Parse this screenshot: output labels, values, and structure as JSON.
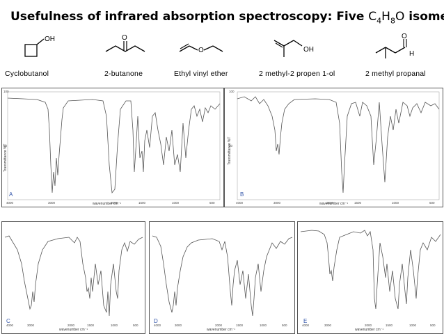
{
  "title": {
    "main": "Usefulness of infrared absorption spectroscopy: Five ",
    "formula_parts": [
      {
        "t": "C",
        "sub": false
      },
      {
        "t": "4",
        "sub": true
      },
      {
        "t": "H",
        "sub": false
      },
      {
        "t": "8",
        "sub": true
      },
      {
        "t": "O",
        "sub": false
      }
    ],
    "tail": " isomers"
  },
  "molecules": [
    {
      "name": "Cyclobutanol",
      "atom": "OH"
    },
    {
      "name": "2-butanone",
      "atom": "O"
    },
    {
      "name": "Ethyl vinyl ether",
      "atom": "O"
    },
    {
      "name": "2 methyl-2 propen 1-ol",
      "atom": "OH"
    },
    {
      "name": "2 methyl propanal",
      "atom": "O",
      "atom2": "H"
    }
  ],
  "spectra": [
    {
      "label": "A",
      "xlabel": "wavenumber cm⁻¹",
      "ylabel": "Transmittance %T",
      "ticks": [
        "4000",
        "3000",
        "2000",
        "1500",
        "1000",
        "500"
      ],
      "y_ticks": [
        "100",
        "50"
      ]
    },
    {
      "label": "B",
      "xlabel": "wavenumber cm⁻¹",
      "ylabel": "Transmittance %T",
      "ticks": [
        "4000",
        "3000",
        "2000",
        "1500",
        "1000",
        "500"
      ],
      "y_ticks": [
        "100",
        "50"
      ]
    },
    {
      "label": "C",
      "xlabel": "wavenumber cm⁻¹",
      "ylabel": "",
      "ticks": [
        "4000",
        "3000",
        "2000",
        "1500",
        "1000",
        "500"
      ],
      "y_ticks": []
    },
    {
      "label": "D",
      "xlabel": "wavenumber cm⁻¹",
      "ylabel": "",
      "ticks": [
        "4000",
        "3000",
        "2000",
        "1500",
        "1000",
        "500"
      ],
      "y_ticks": []
    },
    {
      "label": "E",
      "xlabel": "wavenumber cm⁻¹",
      "ylabel": "",
      "ticks": [
        "4000",
        "3000",
        "2000",
        "1500",
        "1000",
        "500"
      ],
      "y_ticks": []
    }
  ],
  "colors": {
    "trace": "#555555",
    "panel_label": "#3355aa"
  }
}
